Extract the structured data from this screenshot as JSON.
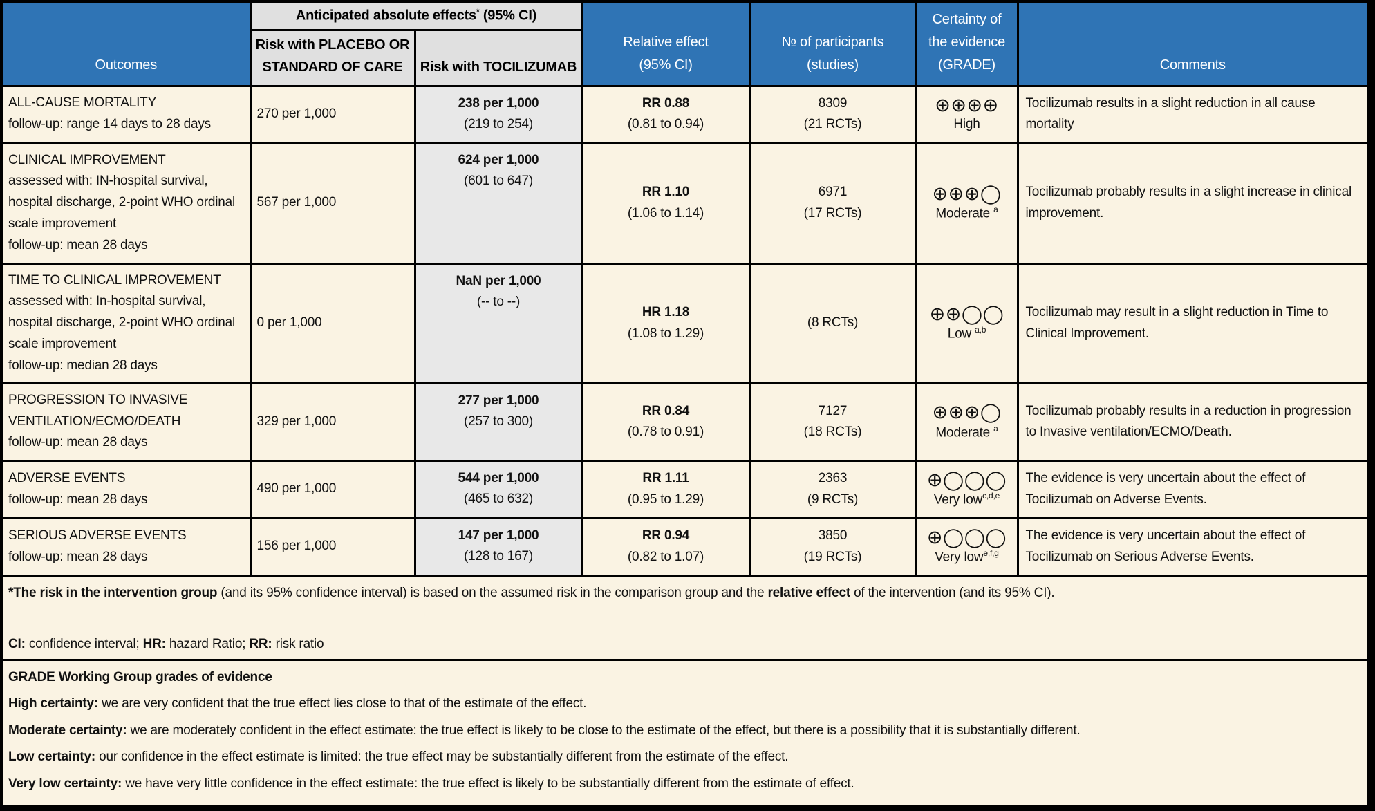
{
  "header": {
    "outcomes": "Outcomes",
    "absolute_effects": {
      "pre": "Anticipated absolute effects",
      "sup": "*",
      "post": " (95% CI)"
    },
    "risk_placebo": [
      "Risk with PLACEBO OR",
      "STANDARD OF CARE"
    ],
    "risk_tocilizumab": [
      "Risk with TOCILIZUMAB"
    ],
    "relative_effect": [
      "Relative effect",
      "(95% CI)"
    ],
    "participants": [
      "№ of participants",
      "(studies)"
    ],
    "certainty": [
      "Certainty of",
      "the evidence",
      "(GRADE)"
    ],
    "comments": [
      "Comments"
    ]
  },
  "rows": [
    {
      "outcome": [
        "ALL-CAUSE MORTALITY",
        "follow-up: range 14 days to 28 days"
      ],
      "risk_placebo": "270 per 1,000",
      "risk_intervention": {
        "value": "238 per 1,000",
        "ci": "(219 to 254)"
      },
      "relative_effect": {
        "value": "RR 0.88",
        "ci": "(0.81 to 0.94)"
      },
      "participants": {
        "n": "8309",
        "studies": "(21 RCTs)"
      },
      "certainty": {
        "symbols": "⊕⊕⊕⊕",
        "label": "High",
        "sup": ""
      },
      "comment": "Tocilizumab results in a slight reduction in all cause mortality"
    },
    {
      "outcome": [
        "CLINICAL IMPROVEMENT",
        "assessed with: IN-hospital survival, hospital discharge, 2-point WHO ordinal scale improvement",
        "follow-up: mean 28 days"
      ],
      "risk_placebo": "567 per 1,000",
      "risk_intervention": {
        "value": "624 per 1,000",
        "ci": "(601 to 647)"
      },
      "relative_effect": {
        "value": "RR 1.10",
        "ci": "(1.06 to 1.14)"
      },
      "participants": {
        "n": "6971",
        "studies": "(17 RCTs)"
      },
      "certainty": {
        "symbols": "⊕⊕⊕◯",
        "label": "Moderate ",
        "sup": "a"
      },
      "comment": "Tocilizumab probably results in a slight increase in clinical improvement."
    },
    {
      "outcome": [
        "TIME TO CLINICAL IMPROVEMENT",
        "assessed with: In-hospital survival, hospital discharge, 2-point WHO ordinal scale improvement",
        "follow-up: median 28 days"
      ],
      "risk_placebo": "0 per 1,000",
      "risk_intervention": {
        "value": "NaN per 1,000",
        "ci": "(-- to --)"
      },
      "relative_effect": {
        "value": "HR 1.18",
        "ci": "(1.08 to 1.29)"
      },
      "participants": {
        "n": "",
        "studies": "(8 RCTs)"
      },
      "certainty": {
        "symbols": "⊕⊕◯◯",
        "label": "Low ",
        "sup": "a,b"
      },
      "comment": "Tocilizumab may result in a slight reduction in Time to Clinical Improvement."
    },
    {
      "outcome": [
        "PROGRESSION TO INVASIVE VENTILATION/ECMO/DEATH",
        "follow-up: mean 28 days"
      ],
      "risk_placebo": "329 per 1,000",
      "risk_intervention": {
        "value": "277 per 1,000",
        "ci": "(257 to 300)"
      },
      "relative_effect": {
        "value": "RR 0.84",
        "ci": "(0.78 to 0.91)"
      },
      "participants": {
        "n": "7127",
        "studies": "(18 RCTs)"
      },
      "certainty": {
        "symbols": "⊕⊕⊕◯",
        "label": "Moderate ",
        "sup": "a"
      },
      "comment": "Tocilizumab probably results in a reduction in progression to Invasive ventilation/ECMO/Death."
    },
    {
      "outcome": [
        "ADVERSE EVENTS",
        "follow-up: mean 28 days"
      ],
      "risk_placebo": "490 per 1,000",
      "risk_intervention": {
        "value": "544 per 1,000",
        "ci": "(465 to 632)"
      },
      "relative_effect": {
        "value": "RR 1.11",
        "ci": "(0.95 to 1.29)"
      },
      "participants": {
        "n": "2363",
        "studies": "(9 RCTs)"
      },
      "certainty": {
        "symbols": "⊕◯◯◯",
        "label": "Very low",
        "sup": "c,d,e"
      },
      "comment": "The evidence is very uncertain about the effect of Tocilizumab on Adverse Events."
    },
    {
      "outcome": [
        "SERIOUS ADVERSE EVENTS",
        "follow-up: mean 28 days"
      ],
      "risk_placebo": "156 per 1,000",
      "risk_intervention": {
        "value": "147 per 1,000",
        "ci": "(128 to 167)"
      },
      "relative_effect": {
        "value": "RR 0.94",
        "ci": "(0.82 to 1.07)"
      },
      "participants": {
        "n": "3850",
        "studies": "(19 RCTs)"
      },
      "certainty": {
        "symbols": "⊕◯◯◯",
        "label": "Very low",
        "sup": "e,f,g"
      },
      "comment": "The evidence is very uncertain about the effect of Tocilizumab on Serious Adverse Events."
    }
  ],
  "footnote": {
    "line1": [
      {
        "t": "*The risk in the intervention group",
        "b": true
      },
      {
        "t": " (and its 95% confidence interval) is based on the assumed risk in the comparison group and the ",
        "b": false
      },
      {
        "t": "relative effect",
        "b": true
      },
      {
        "t": " of the intervention (and its 95% CI).",
        "b": false
      }
    ],
    "abbrev": [
      {
        "t": "CI:",
        "b": true
      },
      {
        "t": " confidence interval; ",
        "b": false
      },
      {
        "t": "HR:",
        "b": true
      },
      {
        "t": " hazard Ratio; ",
        "b": false
      },
      {
        "t": "RR:",
        "b": true
      },
      {
        "t": " risk ratio",
        "b": false
      }
    ]
  },
  "grade_notes": [
    [
      {
        "t": "GRADE Working Group grades of evidence",
        "b": true
      }
    ],
    [
      {
        "t": "High certainty:",
        "b": true
      },
      {
        "t": " we are very confident that the true effect lies close to that of the estimate of the effect.",
        "b": false
      }
    ],
    [
      {
        "t": "Moderate certainty:",
        "b": true
      },
      {
        "t": " we are moderately confident in the effect estimate: the true effect is likely to be close to the estimate of the effect, but there is a possibility that it is substantially different.",
        "b": false
      }
    ],
    [
      {
        "t": "Low certainty:",
        "b": true
      },
      {
        "t": " our confidence in the effect estimate is limited: the true effect may be substantially different from the estimate of the effect.",
        "b": false
      }
    ],
    [
      {
        "t": "Very low certainty:",
        "b": true
      },
      {
        "t": " we have very little confidence in the effect estimate: the true effect is likely to be substantially different from the estimate of effect.",
        "b": false
      }
    ]
  ],
  "colors": {
    "header_blue": "#2F74B5",
    "body_cream": "#FAF3E3",
    "gray_header": "#E0E0E0",
    "gray_intervention_column": "#E8E8E8",
    "border_black": "#000000",
    "header_text_white": "#FFFFFF"
  }
}
